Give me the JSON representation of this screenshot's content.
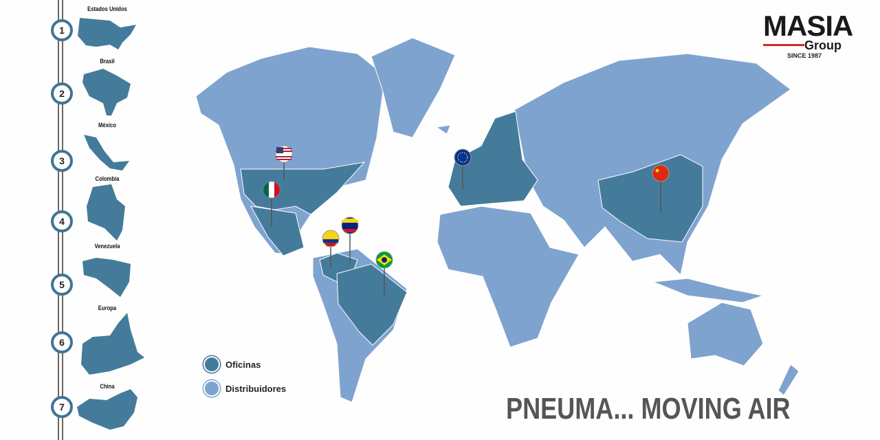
{
  "logo": {
    "name": "MASIA",
    "sub": "Group",
    "since": "SINCE 1987"
  },
  "timeline": [
    {
      "num": "1",
      "country": "Estados Unidos"
    },
    {
      "num": "2",
      "country": "Brasil"
    },
    {
      "num": "3",
      "country": "México"
    },
    {
      "num": "4",
      "country": "Colombia"
    },
    {
      "num": "5",
      "country": "Venezuela"
    },
    {
      "num": "6",
      "country": "Europa"
    },
    {
      "num": "7",
      "country": "China"
    }
  ],
  "legend": {
    "offices": "Oficinas",
    "distributors": "Distribuidores"
  },
  "colors": {
    "offices": "#457b9a",
    "distributors": "#7fa3cf",
    "accent": "#d6262b"
  },
  "slogan": "PNEUMA... MOVING AIR"
}
